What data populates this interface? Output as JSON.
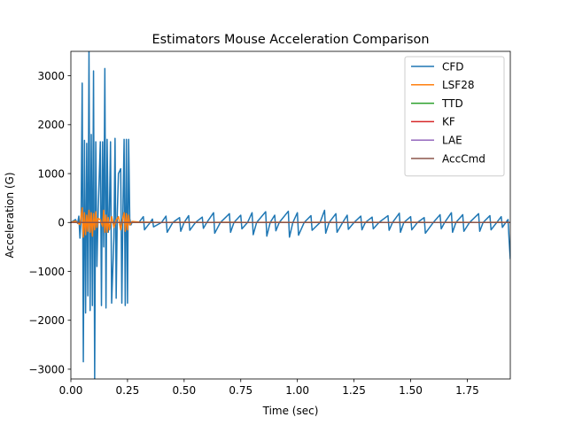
{
  "chart_data": {
    "type": "line",
    "title": "Estimators Mouse Acceleration Comparison",
    "xlabel": "Time (sec)",
    "ylabel": "Acceleration (G)",
    "xlim": [
      0,
      1.94
    ],
    "ylim": [
      -3200,
      3500
    ],
    "xticks": [
      0.0,
      0.25,
      0.5,
      0.75,
      1.0,
      1.25,
      1.5,
      1.75
    ],
    "xtick_labels": [
      "0.00",
      "0.25",
      "0.50",
      "0.75",
      "1.00",
      "1.25",
      "1.50",
      "1.75"
    ],
    "yticks": [
      -3000,
      -2000,
      -1000,
      0,
      1000,
      2000,
      3000
    ],
    "ytick_labels": [
      "−3000",
      "−2000",
      "−1000",
      "0",
      "1000",
      "2000",
      "3000"
    ],
    "grid": false,
    "legend_position": "top-right",
    "series": [
      {
        "name": "CFD",
        "color": "#1f77b4",
        "x": [
          0.0,
          0.02,
          0.03,
          0.035,
          0.04,
          0.045,
          0.05,
          0.055,
          0.06,
          0.065,
          0.07,
          0.075,
          0.08,
          0.085,
          0.09,
          0.095,
          0.1,
          0.105,
          0.11,
          0.115,
          0.12,
          0.13,
          0.135,
          0.14,
          0.145,
          0.15,
          0.155,
          0.16,
          0.165,
          0.17,
          0.175,
          0.18,
          0.19,
          0.195,
          0.2,
          0.205,
          0.21,
          0.22,
          0.225,
          0.23,
          0.235,
          0.24,
          0.245,
          0.25,
          0.255,
          0.26,
          0.265,
          0.27,
          0.3,
          0.32,
          0.325,
          0.35,
          0.36,
          0.365,
          0.4,
          0.42,
          0.425,
          0.45,
          0.48,
          0.485,
          0.5,
          0.52,
          0.525,
          0.55,
          0.58,
          0.585,
          0.6,
          0.63,
          0.635,
          0.66,
          0.7,
          0.705,
          0.72,
          0.75,
          0.755,
          0.78,
          0.8,
          0.805,
          0.82,
          0.86,
          0.865,
          0.88,
          0.9,
          0.905,
          0.92,
          0.96,
          0.965,
          0.98,
          1.0,
          1.005,
          1.03,
          1.06,
          1.065,
          1.1,
          1.12,
          1.125,
          1.14,
          1.17,
          1.175,
          1.2,
          1.22,
          1.225,
          1.25,
          1.28,
          1.285,
          1.3,
          1.33,
          1.335,
          1.36,
          1.4,
          1.405,
          1.42,
          1.45,
          1.455,
          1.47,
          1.5,
          1.505,
          1.53,
          1.56,
          1.565,
          1.6,
          1.63,
          1.635,
          1.65,
          1.68,
          1.685,
          1.7,
          1.73,
          1.735,
          1.76,
          1.8,
          1.805,
          1.82,
          1.85,
          1.855,
          1.88,
          1.9,
          1.905,
          1.92,
          1.93,
          1.935,
          1.94
        ],
        "y": [
          0,
          60,
          -20,
          130,
          -320,
          40,
          2850,
          -2850,
          1680,
          -1850,
          1620,
          -1500,
          3500,
          -1800,
          1800,
          -1700,
          3100,
          -3200,
          1650,
          -900,
          150,
          1650,
          -1700,
          1650,
          -500,
          3150,
          -1750,
          1700,
          -200,
          150,
          1650,
          -1650,
          -300,
          1720,
          -1550,
          200,
          1000,
          1100,
          -1650,
          300,
          1700,
          -1700,
          1700,
          -1650,
          1700,
          80,
          -50,
          0,
          0,
          120,
          -150,
          0,
          70,
          -90,
          0,
          130,
          -200,
          0,
          100,
          -180,
          0,
          140,
          -160,
          0,
          110,
          -120,
          0,
          200,
          -220,
          0,
          180,
          -200,
          0,
          150,
          -130,
          0,
          200,
          -250,
          0,
          220,
          -280,
          0,
          150,
          -170,
          0,
          230,
          -300,
          0,
          200,
          -260,
          0,
          140,
          -160,
          0,
          250,
          -220,
          0,
          180,
          -200,
          0,
          150,
          -140,
          0,
          130,
          -150,
          0,
          110,
          -130,
          0,
          140,
          -160,
          0,
          190,
          -200,
          0,
          120,
          -150,
          0,
          100,
          -220,
          0,
          160,
          -130,
          0,
          200,
          -200,
          0,
          160,
          -180,
          0,
          180,
          -180,
          0,
          140,
          -150,
          0,
          120,
          -100,
          0,
          60,
          -380,
          -750
        ]
      },
      {
        "name": "LSF28",
        "color": "#ff7f0e",
        "x": [
          0.0,
          0.02,
          0.04,
          0.05,
          0.055,
          0.06,
          0.065,
          0.07,
          0.075,
          0.08,
          0.085,
          0.09,
          0.095,
          0.1,
          0.105,
          0.11,
          0.115,
          0.12,
          0.13,
          0.14,
          0.145,
          0.15,
          0.155,
          0.16,
          0.165,
          0.17,
          0.18,
          0.19,
          0.2,
          0.21,
          0.22,
          0.23,
          0.235,
          0.24,
          0.245,
          0.25,
          0.255,
          0.26,
          0.27,
          0.3,
          0.4,
          0.5,
          0.6,
          0.7,
          0.8,
          0.9,
          1.0,
          1.1,
          1.2,
          1.3,
          1.4,
          1.5,
          1.6,
          1.7,
          1.8,
          1.9,
          1.94
        ],
        "y": [
          0,
          30,
          -40,
          300,
          -300,
          200,
          -250,
          150,
          -180,
          250,
          -200,
          200,
          -280,
          180,
          -150,
          220,
          -100,
          80,
          60,
          -80,
          250,
          -200,
          150,
          -200,
          100,
          -150,
          120,
          -100,
          50,
          120,
          -150,
          100,
          200,
          -180,
          180,
          -150,
          150,
          -50,
          20,
          10,
          0,
          5,
          0,
          5,
          0,
          5,
          0,
          5,
          0,
          5,
          0,
          5,
          0,
          5,
          0,
          5,
          0
        ]
      },
      {
        "name": "TTD",
        "color": "#2ca02c",
        "x": [
          0.0,
          1.94
        ],
        "y": [
          0,
          0
        ]
      },
      {
        "name": "KF",
        "color": "#d62728",
        "x": [
          0.0,
          1.94
        ],
        "y": [
          0,
          0
        ]
      },
      {
        "name": "LAE",
        "color": "#9467bd",
        "x": [
          0.0,
          1.94
        ],
        "y": [
          0,
          0
        ]
      },
      {
        "name": "AccCmd",
        "color": "#8c564b",
        "x": [
          0.0,
          1.94
        ],
        "y": [
          0,
          0
        ]
      }
    ]
  }
}
